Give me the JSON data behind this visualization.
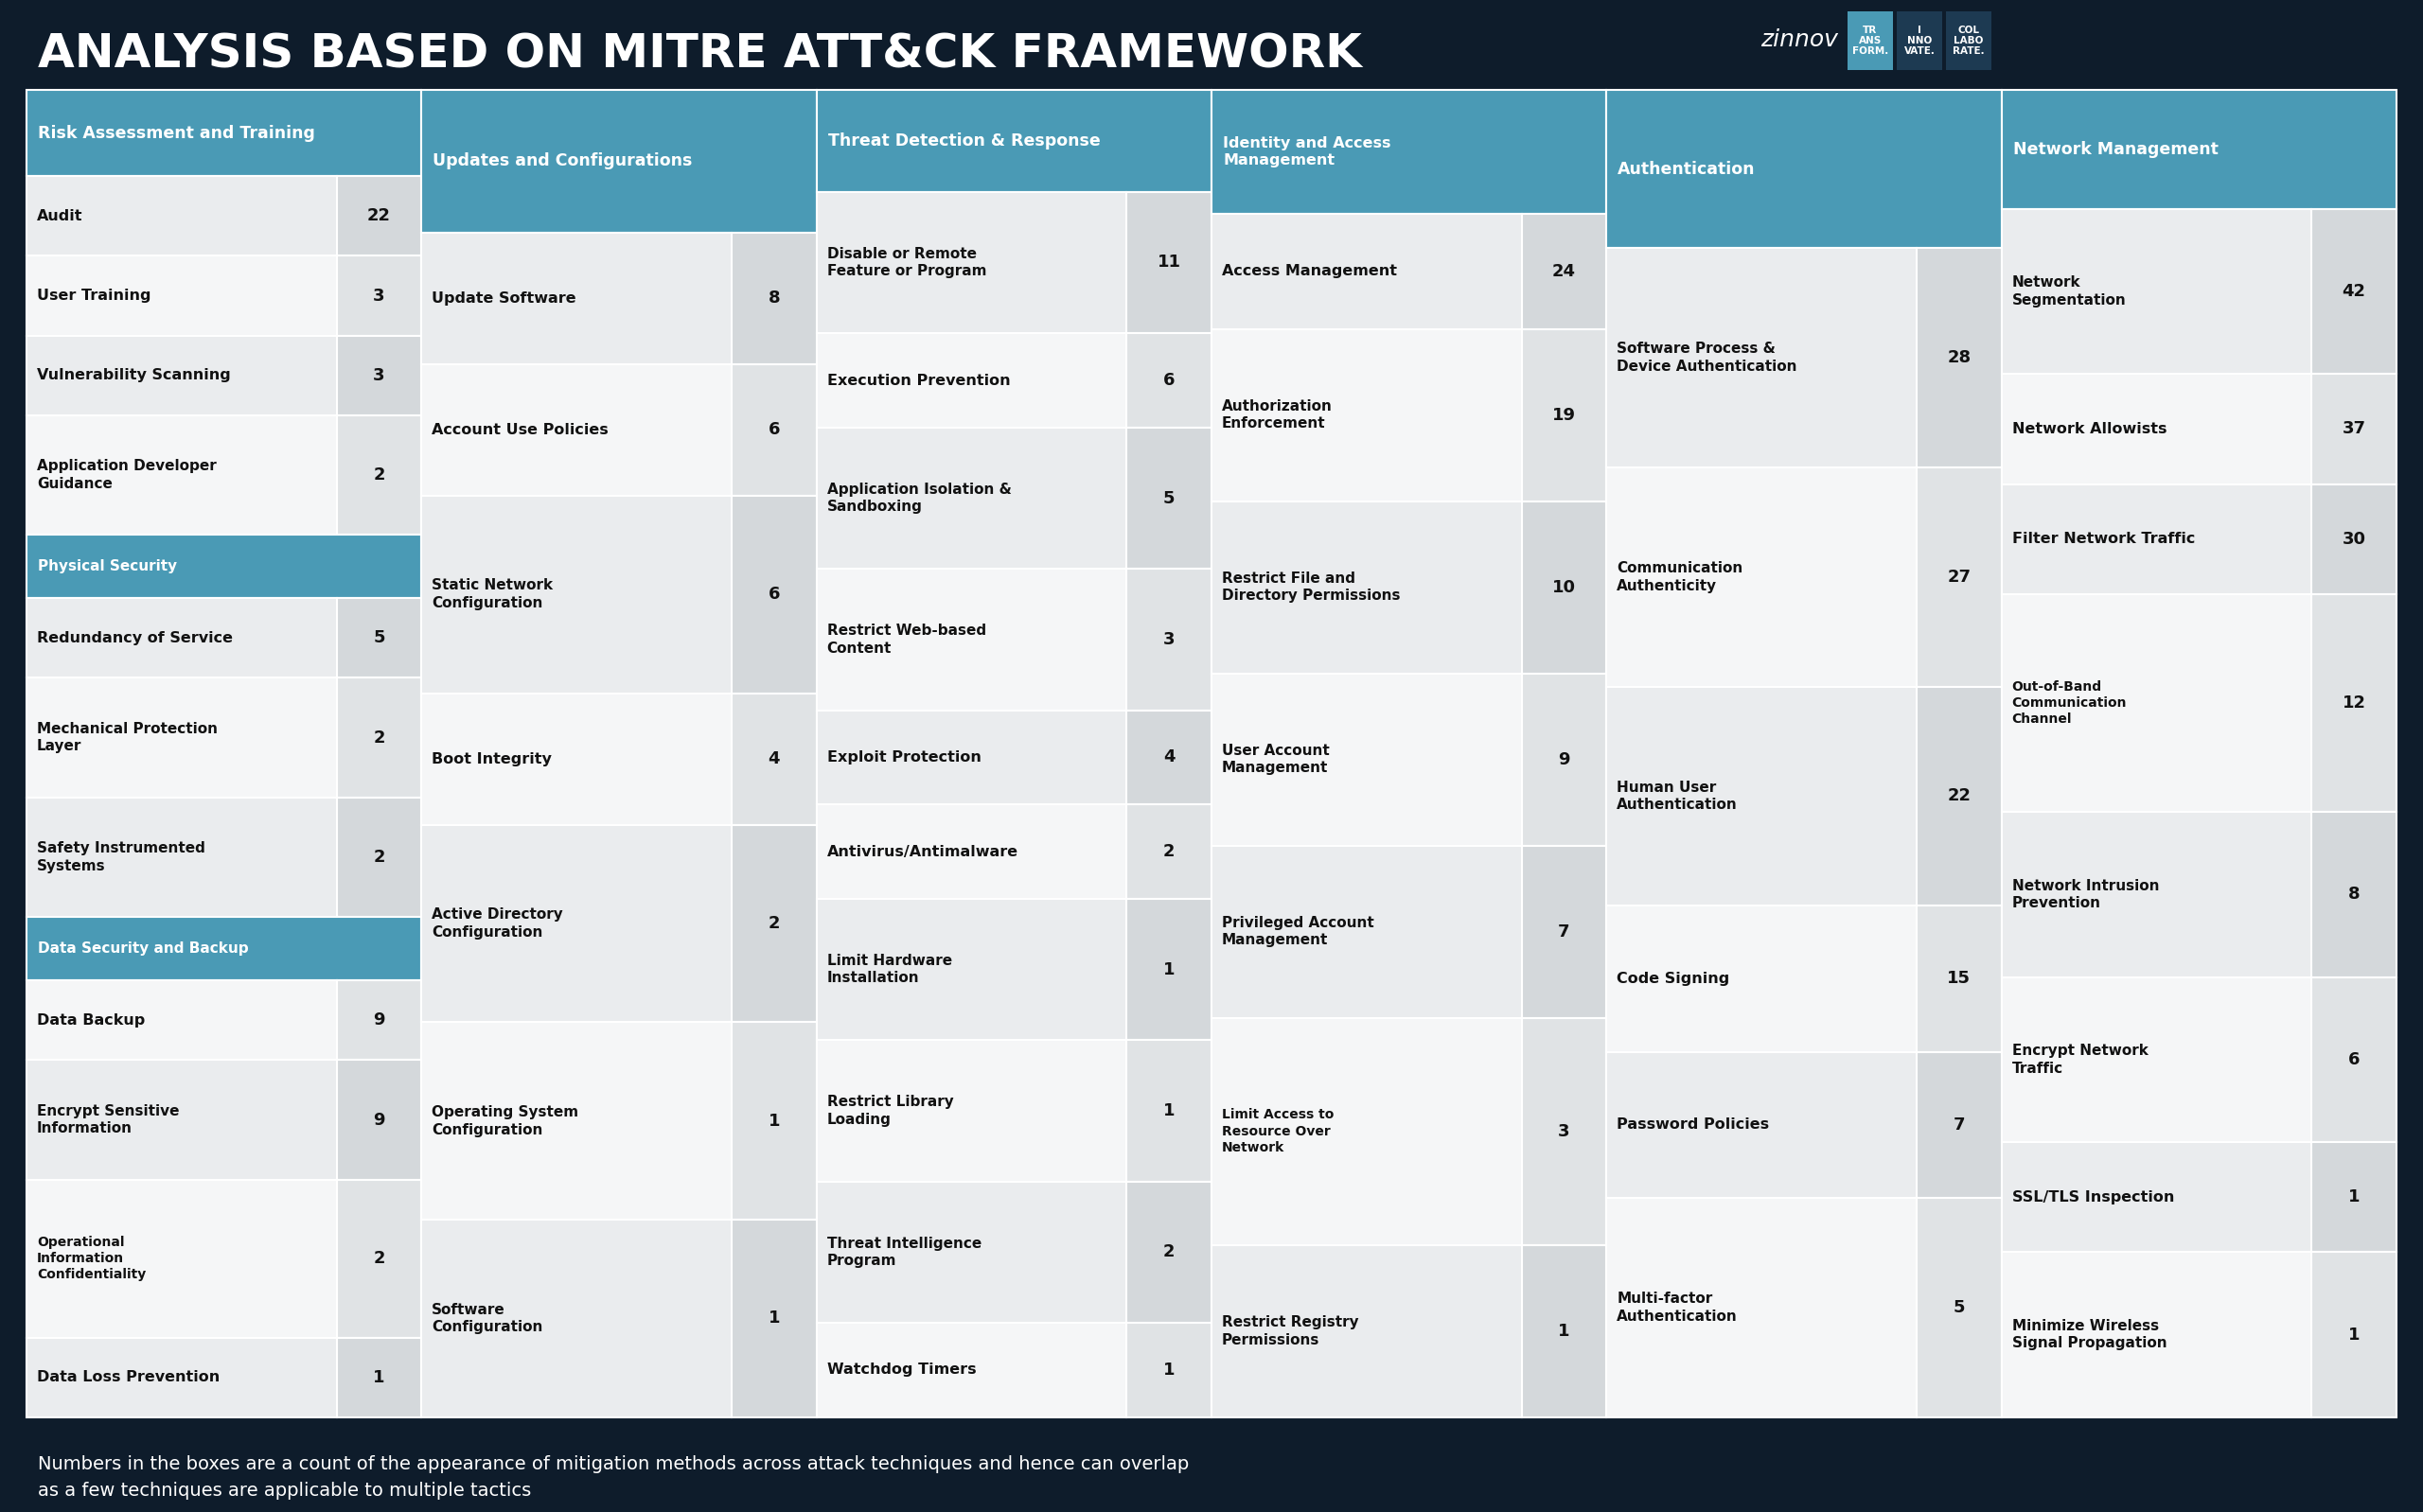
{
  "title": "ANALYSIS BASED ON MITRE ATT&CK FRAMEWORK",
  "bg_color": "#0e1c2b",
  "header_color": "#4a9ab5",
  "cell_bg_even": "#eaecee",
  "cell_bg_odd": "#f5f6f7",
  "val_bg_even": "#d4d8db",
  "val_bg_odd": "#e0e3e5",
  "border_color": "#ffffff",
  "footer_text": "Numbers in the boxes are a count of the appearance of mitigation methods across attack techniques and hence can overlap\nas a few techniques are applicable to multiple tactics",
  "columns": [
    {
      "header": "Risk Assessment and Training",
      "groups": [
        {
          "group_header": null,
          "items": [
            {
              "label": "Audit",
              "value": 22
            },
            {
              "label": "User Training",
              "value": 3
            },
            {
              "label": "Vulnerability Scanning",
              "value": 3
            },
            {
              "label": "Application Developer\nGuidance",
              "value": 2
            }
          ]
        },
        {
          "group_header": "Physical Security",
          "items": [
            {
              "label": "Redundancy of Service",
              "value": 5
            },
            {
              "label": "Mechanical Protection\nLayer",
              "value": 2
            },
            {
              "label": "Safety Instrumented\nSystems",
              "value": 2
            }
          ]
        },
        {
          "group_header": "Data Security and Backup",
          "items": [
            {
              "label": "Data Backup",
              "value": 9
            },
            {
              "label": "Encrypt Sensitive\nInformation",
              "value": 9
            },
            {
              "label": "Operational\nInformation\nConfidentiality",
              "value": 2
            },
            {
              "label": "Data Loss Prevention",
              "value": 1
            }
          ]
        }
      ]
    },
    {
      "header": "Updates and Configurations",
      "groups": [
        {
          "group_header": null,
          "items": [
            {
              "label": "Update Software",
              "value": 8
            },
            {
              "label": "Account Use Policies",
              "value": 6
            },
            {
              "label": "Static Network\nConfiguration",
              "value": 6
            },
            {
              "label": "Boot Integrity",
              "value": 4
            },
            {
              "label": "Active Directory\nConfiguration",
              "value": 2
            },
            {
              "label": "Operating System\nConfiguration",
              "value": 1
            },
            {
              "label": "Software\nConfiguration",
              "value": 1
            }
          ]
        }
      ]
    },
    {
      "header": "Threat Detection & Response",
      "groups": [
        {
          "group_header": null,
          "items": [
            {
              "label": "Disable or Remote\nFeature or Program",
              "value": 11
            },
            {
              "label": "Execution Prevention",
              "value": 6
            },
            {
              "label": "Application Isolation &\nSandboxing",
              "value": 5
            },
            {
              "label": "Restrict Web-based\nContent",
              "value": 3
            },
            {
              "label": "Exploit Protection",
              "value": 4
            },
            {
              "label": "Antivirus/Antimalware",
              "value": 2
            },
            {
              "label": "Limit Hardware\nInstallation",
              "value": 1
            },
            {
              "label": "Restrict Library\nLoading",
              "value": 1
            },
            {
              "label": "Threat Intelligence\nProgram",
              "value": 2
            },
            {
              "label": "Watchdog Timers",
              "value": 1
            }
          ]
        }
      ]
    },
    {
      "header": "Identity and Access\nManagement",
      "groups": [
        {
          "group_header": null,
          "items": [
            {
              "label": "Access Management",
              "value": 24
            },
            {
              "label": "Authorization\nEnforcement",
              "value": 19
            },
            {
              "label": "Restrict File and\nDirectory Permissions",
              "value": 10
            },
            {
              "label": "User Account\nManagement",
              "value": 9
            },
            {
              "label": "Privileged Account\nManagement",
              "value": 7
            },
            {
              "label": "Limit Access to\nResource Over\nNetwork",
              "value": 3
            },
            {
              "label": "Restrict Registry\nPermissions",
              "value": 1
            }
          ]
        }
      ]
    },
    {
      "header": "Authentication",
      "groups": [
        {
          "group_header": null,
          "items": [
            {
              "label": "Software Process &\nDevice Authentication",
              "value": 28
            },
            {
              "label": "Communication\nAuthenticity",
              "value": 27
            },
            {
              "label": "Human User\nAuthentication",
              "value": 22
            },
            {
              "label": "Code Signing",
              "value": 15
            },
            {
              "label": "Password Policies",
              "value": 7
            },
            {
              "label": "Multi-factor\nAuthentication",
              "value": 5
            }
          ]
        }
      ]
    },
    {
      "header": "Network Management",
      "groups": [
        {
          "group_header": null,
          "items": [
            {
              "label": "Network\nSegmentation",
              "value": 42
            },
            {
              "label": "Network Allowists",
              "value": 37
            },
            {
              "label": "Filter Network Traffic",
              "value": 30
            },
            {
              "label": "Out-of-Band\nCommunication\nChannel",
              "value": 12
            },
            {
              "label": "Network Intrusion\nPrevention",
              "value": 8
            },
            {
              "label": "Encrypt Network\nTraffic",
              "value": 6
            },
            {
              "label": "SSL/TLS Inspection",
              "value": 1
            },
            {
              "label": "Minimize Wireless\nSignal Propagation",
              "value": 1
            }
          ]
        }
      ]
    }
  ]
}
